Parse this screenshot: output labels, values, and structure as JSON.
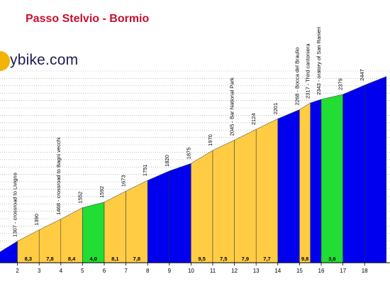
{
  "page": {
    "title": "Passo Stelvio - Bormio",
    "logo": "ybike.com"
  },
  "chart_data": {
    "type": "area",
    "x_ticks": [
      "2",
      "3",
      "4",
      "5",
      "6",
      "7",
      "8",
      "9",
      "10",
      "11",
      "12",
      "13",
      "14",
      "15",
      "16",
      "17",
      "18"
    ],
    "ylim": [
      1150,
      2550
    ],
    "grid": true,
    "colors": {
      "blue": "#0000ee",
      "yellow": "#ffcc44",
      "green": "#22dd33"
    },
    "segments": [
      {
        "x0": 0,
        "x1": 1,
        "start": 1210,
        "end": 1307,
        "gradient": "",
        "color": "blue"
      },
      {
        "x0": 1,
        "x1": 2,
        "start": 1307,
        "end": 1390,
        "gradient": "8,3",
        "color": "yellow"
      },
      {
        "x0": 2,
        "x1": 3,
        "start": 1390,
        "end": 1468,
        "gradient": "7,8",
        "color": "yellow"
      },
      {
        "x0": 3,
        "x1": 4,
        "start": 1468,
        "end": 1552,
        "gradient": "8,4",
        "color": "yellow"
      },
      {
        "x0": 4,
        "x1": 5,
        "start": 1552,
        "end": 1592,
        "gradient": "4,0",
        "color": "green"
      },
      {
        "x0": 5,
        "x1": 6,
        "start": 1592,
        "end": 1673,
        "gradient": "8,1",
        "color": "yellow"
      },
      {
        "x0": 6,
        "x1": 7,
        "start": 1673,
        "end": 1751,
        "gradient": "7,8",
        "color": "yellow"
      },
      {
        "x0": 7,
        "x1": 8,
        "start": 1751,
        "end": 1820,
        "gradient": "",
        "color": "blue"
      },
      {
        "x0": 8,
        "x1": 9,
        "start": 1820,
        "end": 1875,
        "gradient": "",
        "color": "blue"
      },
      {
        "x0": 9,
        "x1": 10,
        "start": 1875,
        "end": 1970,
        "gradient": "9,5",
        "color": "yellow"
      },
      {
        "x0": 10,
        "x1": 11,
        "start": 1970,
        "end": 2045,
        "gradient": "7,5",
        "color": "yellow"
      },
      {
        "x0": 11,
        "x1": 12,
        "start": 2045,
        "end": 2124,
        "gradient": "7,9",
        "color": "yellow"
      },
      {
        "x0": 12,
        "x1": 13,
        "start": 2124,
        "end": 2201,
        "gradient": "7,7",
        "color": "yellow"
      },
      {
        "x0": 13,
        "x1": 14,
        "start": 2201,
        "end": 2268,
        "gradient": "",
        "color": "blue"
      },
      {
        "x0": 14,
        "x1": 14.5,
        "start": 2268,
        "end": 2317,
        "gradient": "9,8",
        "color": "yellow"
      },
      {
        "x0": 14.5,
        "x1": 15,
        "start": 2317,
        "end": 2343,
        "gradient": "",
        "color": "blue"
      },
      {
        "x0": 15,
        "x1": 16,
        "start": 2343,
        "end": 2379,
        "gradient": "3,6",
        "color": "green"
      },
      {
        "x0": 16,
        "x1": 17,
        "start": 2379,
        "end": 2447,
        "gradient": "",
        "color": "blue"
      },
      {
        "x0": 17,
        "x1": 18,
        "start": 2447,
        "end": 2510,
        "gradient": "",
        "color": "blue"
      }
    ],
    "point_labels": [
      {
        "x": 1,
        "value": "1307",
        "text": "1307 - crossroad to Livigno"
      },
      {
        "x": 2,
        "value": "1390",
        "text": "1390"
      },
      {
        "x": 3,
        "value": "1468",
        "text": "1468 - crossroad to Bagni vecchi"
      },
      {
        "x": 4,
        "value": "1552",
        "text": "1552"
      },
      {
        "x": 5,
        "value": "1592",
        "text": "1592"
      },
      {
        "x": 6,
        "value": "1673",
        "text": "1673"
      },
      {
        "x": 7,
        "value": "1751",
        "text": "1751"
      },
      {
        "x": 8,
        "value": "1820",
        "text": "1820"
      },
      {
        "x": 9,
        "value": "1875",
        "text": "1875"
      },
      {
        "x": 10,
        "value": "1970",
        "text": "1970"
      },
      {
        "x": 11,
        "value": "2045",
        "text": "2045 - Bar National Park"
      },
      {
        "x": 12,
        "value": "2124",
        "text": "2124"
      },
      {
        "x": 13,
        "value": "2201",
        "text": "2201"
      },
      {
        "x": 14,
        "value": "2268",
        "text": "2268 - Bocca del Braulio"
      },
      {
        "x": 14.5,
        "value": "2317",
        "text": "2317 - Third cantoniera"
      },
      {
        "x": 15,
        "value": "2343",
        "text": "2343 - oratory of San Ranieri"
      },
      {
        "x": 16,
        "value": "2379",
        "text": "2379"
      },
      {
        "x": 17,
        "value": "2447",
        "text": "2447"
      }
    ]
  }
}
